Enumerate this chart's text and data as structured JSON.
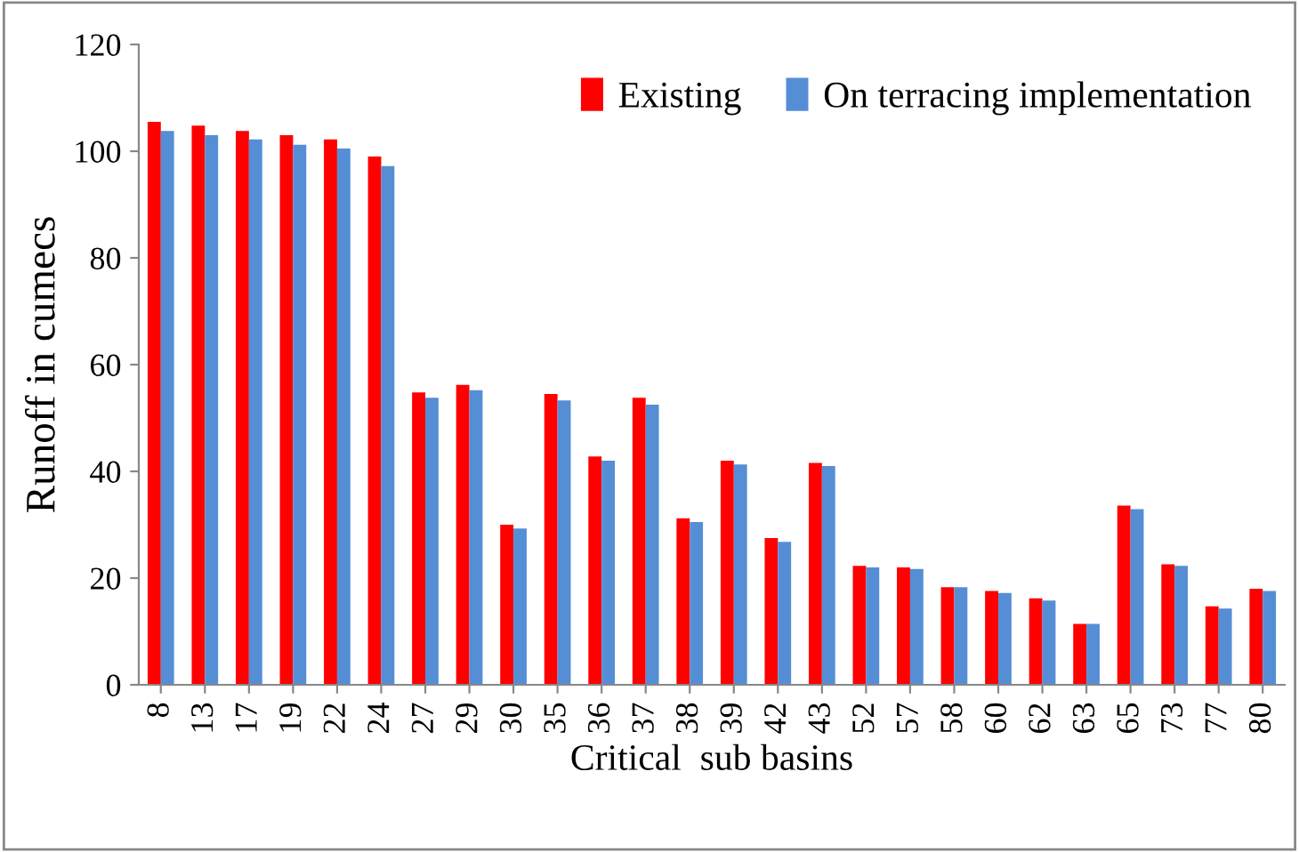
{
  "chart_data": {
    "type": "bar",
    "xlabel": "Critical  sub basins",
    "ylabel": "Runoff in cumecs",
    "categories": [
      "8",
      "13",
      "17",
      "19",
      "22",
      "24",
      "27",
      "29",
      "30",
      "35",
      "36",
      "37",
      "38",
      "39",
      "42",
      "43",
      "52",
      "57",
      "58",
      "60",
      "62",
      "63",
      "65",
      "73",
      "77",
      "80"
    ],
    "series": [
      {
        "name": "Existing",
        "color": "#ff0000",
        "values": [
          105.5,
          104.8,
          103.8,
          103,
          102.2,
          99,
          54.8,
          56.2,
          30,
          54.5,
          42.8,
          53.8,
          31.2,
          42,
          27.5,
          41.6,
          22.3,
          22,
          18.3,
          17.6,
          16.2,
          11.4,
          33.6,
          22.6,
          14.7,
          18
        ]
      },
      {
        "name": "On terracing implementation",
        "color": "#558ed5",
        "values": [
          103.8,
          103,
          102.2,
          101.2,
          100.5,
          97.2,
          53.8,
          55.2,
          29.3,
          53.3,
          42,
          52.5,
          30.5,
          41.3,
          26.8,
          41,
          22,
          21.7,
          18.3,
          17.2,
          15.8,
          11.4,
          32.9,
          22.3,
          14.3,
          17.6
        ]
      }
    ],
    "ylim": [
      0,
      120
    ],
    "yticks": [
      0,
      20,
      40,
      60,
      80,
      100,
      120
    ],
    "grid": false,
    "legend": "top right"
  }
}
